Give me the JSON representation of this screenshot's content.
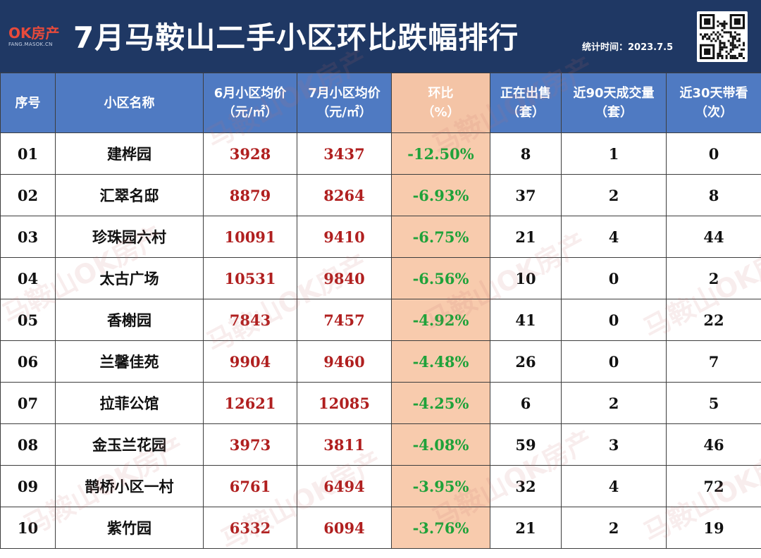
{
  "header": {
    "logo_mark": "OK房产",
    "logo_sub": "FANG.MASOK.CN",
    "title": "7月马鞍山二手小区环比跌幅排行",
    "stat_time": "统计时间：2023.7.5"
  },
  "watermark_text": "马鞍山OK房产",
  "table": {
    "columns": [
      {
        "line1": "序号",
        "line2": ""
      },
      {
        "line1": "小区名称",
        "line2": ""
      },
      {
        "line1": "6月小区均价",
        "line2": "（元/㎡）"
      },
      {
        "line1": "7月小区均价",
        "line2": "（元/㎡）"
      },
      {
        "line1": "环比",
        "line2": "（%）"
      },
      {
        "line1": "正在出售",
        "line2": "（套）"
      },
      {
        "line1": "近90天成交量",
        "line2": "（套）"
      },
      {
        "line1": "近30天带看",
        "line2": "（次）"
      }
    ],
    "rows": [
      {
        "no": "01",
        "name": "建桦园",
        "june": "3928",
        "july": "3437",
        "mom": "-12.50%",
        "on_sale": "8",
        "deals_90d": "1",
        "views_30d": "0"
      },
      {
        "no": "02",
        "name": "汇翠名邸",
        "june": "8879",
        "july": "8264",
        "mom": "-6.93%",
        "on_sale": "37",
        "deals_90d": "2",
        "views_30d": "8"
      },
      {
        "no": "03",
        "name": "珍珠园六村",
        "june": "10091",
        "july": "9410",
        "mom": "-6.75%",
        "on_sale": "21",
        "deals_90d": "4",
        "views_30d": "44"
      },
      {
        "no": "04",
        "name": "太古广场",
        "june": "10531",
        "july": "9840",
        "mom": "-6.56%",
        "on_sale": "10",
        "deals_90d": "0",
        "views_30d": "2"
      },
      {
        "no": "05",
        "name": "香榭园",
        "june": "7843",
        "july": "7457",
        "mom": "-4.92%",
        "on_sale": "41",
        "deals_90d": "0",
        "views_30d": "22"
      },
      {
        "no": "06",
        "name": "兰馨佳苑",
        "june": "9904",
        "july": "9460",
        "mom": "-4.48%",
        "on_sale": "26",
        "deals_90d": "0",
        "views_30d": "7"
      },
      {
        "no": "07",
        "name": "拉菲公馆",
        "june": "12621",
        "july": "12085",
        "mom": "-4.25%",
        "on_sale": "6",
        "deals_90d": "2",
        "views_30d": "5"
      },
      {
        "no": "08",
        "name": "金玉兰花园",
        "june": "3973",
        "july": "3811",
        "mom": "-4.08%",
        "on_sale": "59",
        "deals_90d": "3",
        "views_30d": "46"
      },
      {
        "no": "09",
        "name": "鹊桥小区一村",
        "june": "6761",
        "july": "6494",
        "mom": "-3.95%",
        "on_sale": "32",
        "deals_90d": "4",
        "views_30d": "72"
      },
      {
        "no": "10",
        "name": "紫竹园",
        "june": "6332",
        "july": "6094",
        "mom": "-3.76%",
        "on_sale": "21",
        "deals_90d": "2",
        "views_30d": "19"
      }
    ]
  },
  "colors": {
    "header_bg": "#1f3864",
    "column_header_bg": "#4f7ac2",
    "highlight_col_bg": "#f8cbad",
    "price_text": "#b01f1f",
    "change_text": "#1fa23a"
  }
}
